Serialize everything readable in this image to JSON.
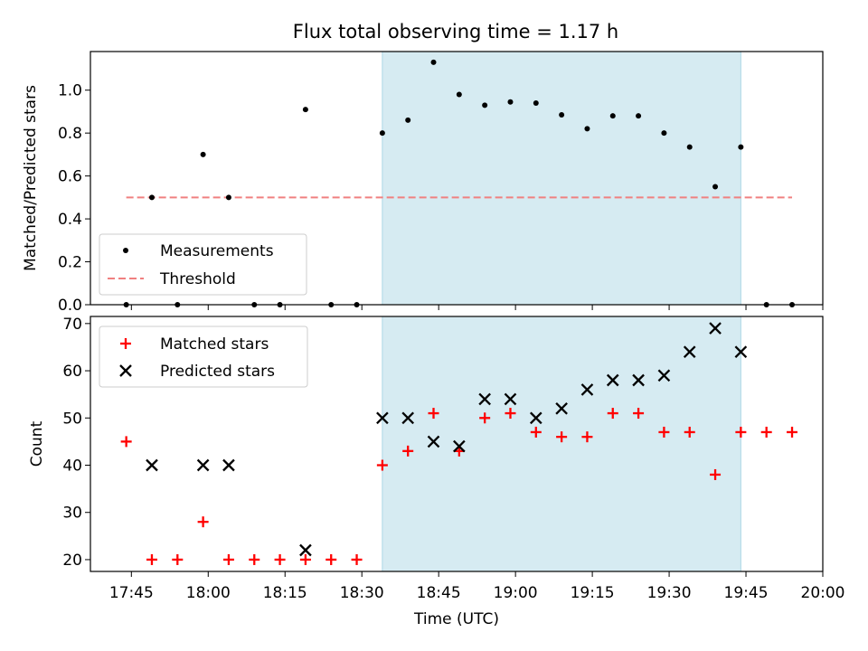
{
  "title": "Flux total observing time = 1.17 h",
  "colors": {
    "shade": "#add8e6",
    "measurement": "#000000",
    "threshold": "#f08080",
    "matched": "#ff0000",
    "predicted": "#000000"
  },
  "chart_data": [
    {
      "type": "scatter",
      "ylabel": "Matched/Predicted stars",
      "ylim": [
        0,
        1.18
      ],
      "yticks": [
        "0.0",
        "0.2",
        "0.4",
        "0.6",
        "0.8",
        "1.0"
      ],
      "shaded_interval": [
        "18:34",
        "19:44"
      ],
      "legend_position": "lower-left",
      "series": [
        {
          "name": "Measurements",
          "kind": "scatter",
          "points": [
            [
              "17:44",
              0.0
            ],
            [
              "17:49",
              0.5
            ],
            [
              "17:54",
              0.0
            ],
            [
              "17:59",
              0.7
            ],
            [
              "18:04",
              0.5
            ],
            [
              "18:09",
              0.0
            ],
            [
              "18:14",
              0.0
            ],
            [
              "18:19",
              0.91
            ],
            [
              "18:24",
              0.0
            ],
            [
              "18:29",
              0.0
            ],
            [
              "18:34",
              0.8
            ],
            [
              "18:39",
              0.86
            ],
            [
              "18:44",
              1.13
            ],
            [
              "18:49",
              0.98
            ],
            [
              "18:54",
              0.93
            ],
            [
              "18:59",
              0.945
            ],
            [
              "19:04",
              0.94
            ],
            [
              "19:09",
              0.885
            ],
            [
              "19:14",
              0.82
            ],
            [
              "19:19",
              0.88
            ],
            [
              "19:24",
              0.88
            ],
            [
              "19:29",
              0.8
            ],
            [
              "19:34",
              0.735
            ],
            [
              "19:39",
              0.55
            ],
            [
              "19:44",
              0.735
            ],
            [
              "19:49",
              0.0
            ],
            [
              "19:54",
              0.0
            ]
          ]
        },
        {
          "name": "Threshold",
          "kind": "line",
          "points": [
            [
              "17:44",
              0.5
            ],
            [
              "19:54",
              0.5
            ]
          ]
        }
      ]
    },
    {
      "type": "scatter",
      "xlabel": "Time (UTC)",
      "ylabel": "Count",
      "ylim": [
        17.5,
        71.5
      ],
      "yticks": [
        "20",
        "30",
        "40",
        "50",
        "60",
        "70"
      ],
      "xticks": [
        "17:45",
        "18:00",
        "18:15",
        "18:30",
        "18:45",
        "19:00",
        "19:15",
        "19:30",
        "19:45",
        "20:00"
      ],
      "xlim": [
        "17:37",
        "20:00"
      ],
      "shaded_interval": [
        "18:34",
        "19:44"
      ],
      "legend_position": "upper-left",
      "series": [
        {
          "name": "Matched stars",
          "marker": "plus",
          "points": [
            [
              "17:44",
              45
            ],
            [
              "17:49",
              20
            ],
            [
              "17:54",
              20
            ],
            [
              "17:59",
              28
            ],
            [
              "18:04",
              20
            ],
            [
              "18:09",
              20
            ],
            [
              "18:14",
              20
            ],
            [
              "18:19",
              20
            ],
            [
              "18:24",
              20
            ],
            [
              "18:29",
              20
            ],
            [
              "18:34",
              40
            ],
            [
              "18:39",
              43
            ],
            [
              "18:44",
              51
            ],
            [
              "18:49",
              43
            ],
            [
              "18:54",
              50
            ],
            [
              "18:59",
              51
            ],
            [
              "19:04",
              47
            ],
            [
              "19:09",
              46
            ],
            [
              "19:14",
              46
            ],
            [
              "19:19",
              51
            ],
            [
              "19:24",
              51
            ],
            [
              "19:29",
              47
            ],
            [
              "19:34",
              47
            ],
            [
              "19:39",
              38
            ],
            [
              "19:44",
              47
            ],
            [
              "19:49",
              47
            ],
            [
              "19:54",
              47
            ]
          ]
        },
        {
          "name": "Predicted stars",
          "marker": "x",
          "points": [
            [
              "17:49",
              40
            ],
            [
              "17:59",
              40
            ],
            [
              "18:04",
              40
            ],
            [
              "18:19",
              22
            ],
            [
              "18:34",
              50
            ],
            [
              "18:39",
              50
            ],
            [
              "18:44",
              45
            ],
            [
              "18:49",
              44
            ],
            [
              "18:54",
              54
            ],
            [
              "18:59",
              54
            ],
            [
              "19:04",
              50
            ],
            [
              "19:09",
              52
            ],
            [
              "19:14",
              56
            ],
            [
              "19:19",
              58
            ],
            [
              "19:24",
              58
            ],
            [
              "19:29",
              59
            ],
            [
              "19:34",
              64
            ],
            [
              "19:39",
              69
            ],
            [
              "19:44",
              64
            ]
          ]
        }
      ]
    }
  ]
}
